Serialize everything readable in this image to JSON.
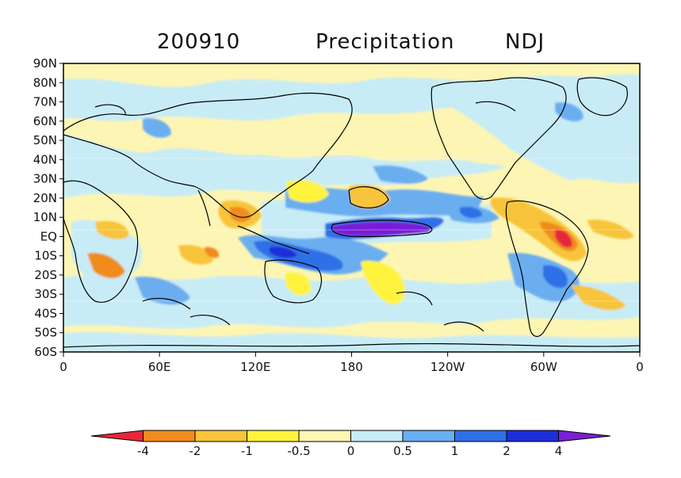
{
  "title": {
    "date": "200910",
    "variable": "Precipitation",
    "season": "NDJ"
  },
  "map": {
    "lat_labels": [
      "90N",
      "80N",
      "70N",
      "60N",
      "50N",
      "40N",
      "30N",
      "20N",
      "10N",
      "EQ",
      "10S",
      "20S",
      "30S",
      "40S",
      "50S",
      "60S"
    ],
    "lon_labels": [
      "0",
      "60E",
      "120E",
      "180",
      "120W",
      "60W",
      "0"
    ]
  },
  "colorbar": {
    "levels": [
      "-4",
      "-2",
      "-1",
      "-0.5",
      "0",
      "0.5",
      "1",
      "2",
      "4"
    ],
    "colors": [
      "#e8283a",
      "#f08c1e",
      "#f7c43a",
      "#fff33c",
      "#fdf5b4",
      "#c8ecf6",
      "#6aaef0",
      "#2f6fe6",
      "#1c2ed8",
      "#7a1fd6"
    ]
  },
  "palette": {
    "ocean_base": "#c8ecf6",
    "land_base": "#fdf5b4",
    "coast": "#000000"
  }
}
